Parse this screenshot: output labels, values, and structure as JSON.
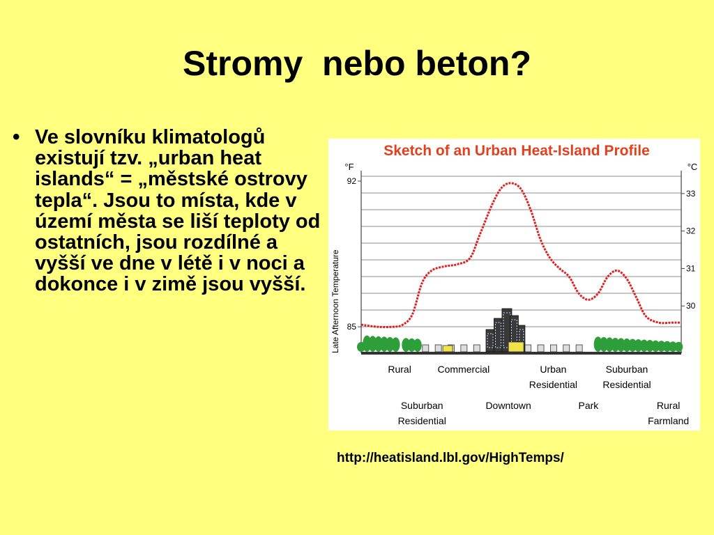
{
  "slide": {
    "title": "Stromy  nebo beton?",
    "bullet_text": "Ve slovníku klimatologů existují tzv. „urban heat islands“ = „městské ostrovy tepla“. Jsou to místa, kde v území města se liší teploty od ostatních, jsou rozdílné a vyšší ve dne v létě i v noci a dokonce i v zimě jsou vyšší.",
    "source_url": "http://heatisland.lbl.gov/HighTemps/"
  },
  "chart_data": {
    "type": "line",
    "title": "Sketch of an Urban Heat-Island Profile",
    "title_color": "#e0401e",
    "line_color": "#e02020",
    "ylabel": "Late Afternoon Temperature",
    "y_unit_left": "°F",
    "y_unit_right": "°C",
    "y_ticks_left": [
      {
        "value": 85,
        "label": "85"
      },
      {
        "value": 92,
        "label": "92"
      }
    ],
    "y_ticks_right": [
      {
        "value": 30,
        "label": "30"
      },
      {
        "value": 31,
        "label": "31"
      },
      {
        "value": 32,
        "label": "32"
      },
      {
        "value": 33,
        "label": "33"
      }
    ],
    "ylim_f": [
      84.0,
      92.5
    ],
    "grid": true,
    "x_labels_row1": [
      {
        "lines": [
          "Rural"
        ],
        "x": 0.12
      },
      {
        "lines": [
          "Commercial"
        ],
        "x": 0.32
      },
      {
        "lines": [
          "Urban",
          "Residential"
        ],
        "x": 0.6
      },
      {
        "lines": [
          "Suburban",
          "Residential"
        ],
        "x": 0.83
      }
    ],
    "x_labels_row2": [
      {
        "lines": [
          "Suburban",
          "Residential"
        ],
        "x": 0.19
      },
      {
        "lines": [
          "Downtown"
        ],
        "x": 0.46
      },
      {
        "lines": [
          "Park"
        ],
        "x": 0.71
      },
      {
        "lines": [
          "Rural",
          "Farmland"
        ],
        "x": 0.96
      }
    ],
    "x": [
      0.0,
      0.05,
      0.1,
      0.13,
      0.16,
      0.19,
      0.22,
      0.26,
      0.3,
      0.34,
      0.37,
      0.41,
      0.44,
      0.47,
      0.5,
      0.53,
      0.56,
      0.59,
      0.62,
      0.65,
      0.68,
      0.71,
      0.74,
      0.77,
      0.8,
      0.83,
      0.86,
      0.89,
      0.93,
      0.97,
      1.0
    ],
    "values": [
      85.1,
      85.0,
      85.0,
      85.1,
      85.6,
      87.1,
      87.7,
      87.9,
      88.0,
      88.3,
      89.4,
      90.9,
      91.7,
      91.9,
      91.6,
      90.6,
      89.2,
      88.3,
      87.8,
      87.4,
      86.6,
      86.3,
      86.6,
      87.4,
      87.7,
      87.3,
      86.4,
      85.5,
      85.2,
      85.2,
      85.2
    ]
  }
}
